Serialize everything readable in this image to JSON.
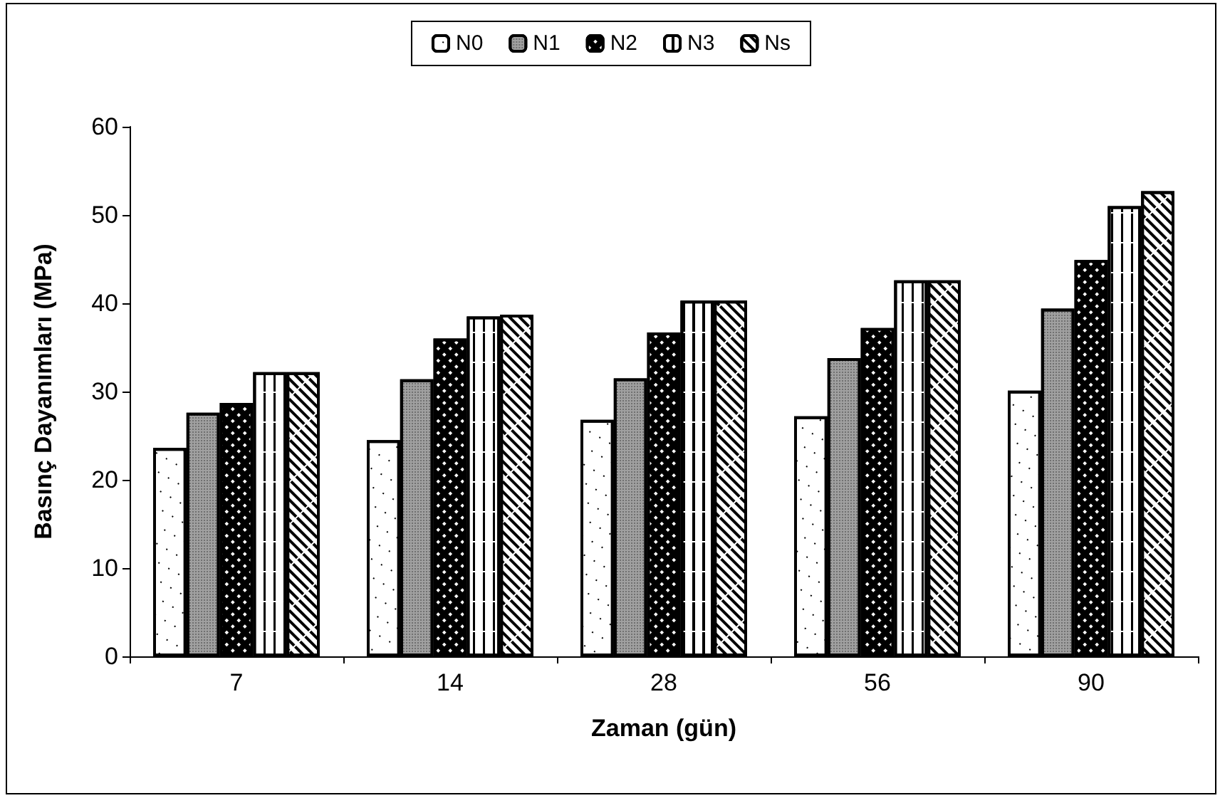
{
  "chart_data": {
    "type": "bar",
    "xlabel": "Zaman (gün)",
    "ylabel": "Basınç Dayanımları (MPa)",
    "categories": [
      "7",
      "14",
      "28",
      "56",
      "90"
    ],
    "series": [
      {
        "name": "N0",
        "color": "#ffffff",
        "values": [
          23.6,
          24.5,
          26.8,
          27.2,
          30.1
        ]
      },
      {
        "name": "N1",
        "color": "#a0a0a0",
        "values": [
          27.6,
          31.4,
          31.5,
          33.8,
          39.4
        ]
      },
      {
        "name": "N2",
        "color": "#000000",
        "values": [
          28.7,
          36.0,
          36.7,
          37.2,
          44.9
        ]
      },
      {
        "name": "N3",
        "color": "#ffffff",
        "values": [
          32.2,
          38.5,
          40.3,
          42.6,
          51.0
        ]
      },
      {
        "name": "Ns",
        "color": "#ffffff",
        "values": [
          32.2,
          38.7,
          40.3,
          42.6,
          52.7
        ]
      }
    ],
    "ylim": [
      0,
      60
    ],
    "yticks": [
      0,
      10,
      20,
      30,
      40,
      50,
      60
    ],
    "grid": false,
    "legend": "top"
  }
}
